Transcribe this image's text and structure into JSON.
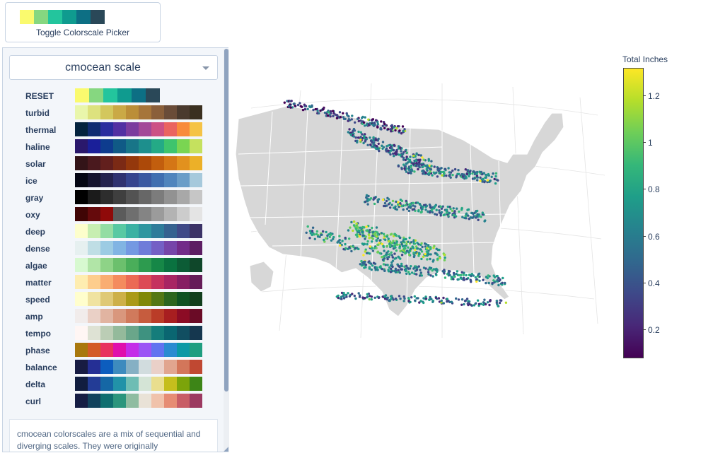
{
  "toggle": {
    "label": "Toggle Colorscale Picker",
    "swatches": [
      "#fafa6e",
      "#86d780",
      "#23c59d",
      "#0f9b8f",
      "#0d6f84",
      "#2a4858"
    ]
  },
  "picker": {
    "selected": "cmocean scale",
    "scales": [
      {
        "name": "RESET",
        "colors": [
          "#fafa6e",
          "#86d780",
          "#23c59d",
          "#0f9b8f",
          "#0d6f84",
          "#2a4858"
        ]
      },
      {
        "name": "turbid",
        "colors": [
          "#e9f6ab",
          "#dde27e",
          "#d3c75d",
          "#caa946",
          "#bb8e38",
          "#a6753a",
          "#8a5f3a",
          "#6a4c38",
          "#4a3a2e",
          "#3a3020"
        ]
      },
      {
        "name": "thermal",
        "colors": [
          "#04233e",
          "#0f2c71",
          "#2a2d9e",
          "#5230a2",
          "#7b3c9e",
          "#a34898",
          "#cc5185",
          "#ea6460",
          "#f88b3c",
          "#f5c346"
        ]
      },
      {
        "name": "haline",
        "colors": [
          "#2a186c",
          "#1a1f99",
          "#0e3c8e",
          "#105a86",
          "#187588",
          "#1d8f8d",
          "#24aa86",
          "#3ec46d",
          "#7ad552",
          "#c5e15e"
        ]
      },
      {
        "name": "solar",
        "colors": [
          "#331418",
          "#4a191e",
          "#621f1d",
          "#7b2a15",
          "#94380c",
          "#ac4909",
          "#c25e0e",
          "#d47616",
          "#e2911e",
          "#ecb028"
        ]
      },
      {
        "name": "ice",
        "colors": [
          "#040613",
          "#15142e",
          "#24234f",
          "#2f3270",
          "#35448e",
          "#3a59a1",
          "#406fb0",
          "#5085bd",
          "#6a9dc8",
          "#a6c9dc"
        ]
      },
      {
        "name": "gray",
        "colors": [
          "#000000",
          "#1b1b1b",
          "#2d2d2d",
          "#3f3f3f",
          "#535353",
          "#676767",
          "#7c7c7c",
          "#929292",
          "#a8a8a8",
          "#c6c6c6"
        ]
      },
      {
        "name": "oxy",
        "colors": [
          "#400505",
          "#650a0c",
          "#8f0a09",
          "#5b5b5b",
          "#6f6f6f",
          "#848484",
          "#9b9b9b",
          "#b3b3b3",
          "#cccccc",
          "#e4e4e4"
        ]
      },
      {
        "name": "deep",
        "colors": [
          "#fdfecc",
          "#c7eeb1",
          "#93dda4",
          "#58c9a3",
          "#3ab1a3",
          "#2f96a0",
          "#2e7c9a",
          "#356290",
          "#3f4a88",
          "#3b3367"
        ]
      },
      {
        "name": "dense",
        "colors": [
          "#e6f0f0",
          "#bfdee5",
          "#9ccbe3",
          "#81b4e3",
          "#7499e2",
          "#6f7cd9",
          "#7460c5",
          "#7645a9",
          "#722c89",
          "#5d1d63"
        ]
      },
      {
        "name": "algae",
        "colors": [
          "#d7f9d0",
          "#b1e5a7",
          "#8ed387",
          "#6cc06d",
          "#4aae5a",
          "#2d9b4f",
          "#168747",
          "#0a7240",
          "#0c5c36",
          "#0f472a"
        ]
      },
      {
        "name": "matter",
        "colors": [
          "#feedb0",
          "#fdcd8d",
          "#f9ad72",
          "#f48b5e",
          "#eb6a55",
          "#dc4b56",
          "#c5325e",
          "#a82563",
          "#871e62",
          "#651c58"
        ]
      },
      {
        "name": "speed",
        "colors": [
          "#fffecd",
          "#f0e3a1",
          "#dfc976",
          "#cdb049",
          "#aa9a19",
          "#7f8808",
          "#537714",
          "#2c651e",
          "#0f5222",
          "#113e1c"
        ]
      },
      {
        "name": "amp",
        "colors": [
          "#f1eceb",
          "#ead0c6",
          "#e1b4a1",
          "#d9977d",
          "#d07a5c",
          "#c65c3e",
          "#ba3c28",
          "#a81e20",
          "#8c0c25",
          "#6a0b26"
        ]
      },
      {
        "name": "tempo",
        "colors": [
          "#fff6f4",
          "#dee2d4",
          "#bbcdb5",
          "#94ba9b",
          "#6aa68a",
          "#3e9280",
          "#157d7b",
          "#0a6671",
          "#114e61",
          "#15374f"
        ]
      },
      {
        "name": "phase",
        "colors": [
          "#a8780d",
          "#d35b26",
          "#e8315f",
          "#e00fac",
          "#c42de8",
          "#9b54f5",
          "#6173f0",
          "#2a8bd1",
          "#0b99a6",
          "#1f9e80"
        ]
      },
      {
        "name": "balance",
        "colors": [
          "#181c43",
          "#252f95",
          "#0c5dbe",
          "#3d8bbe",
          "#85b0c4",
          "#d1dcde",
          "#ead0c8",
          "#e1a58f",
          "#d3765a",
          "#c04832"
        ]
      },
      {
        "name": "delta",
        "colors": [
          "#111d3f",
          "#233c96",
          "#1567a5",
          "#2192a8",
          "#6ebdb4",
          "#d4e4d6",
          "#e9de8e",
          "#c5be1d",
          "#7ca40a",
          "#3d8517"
        ]
      },
      {
        "name": "curl",
        "colors": [
          "#151d44",
          "#11425d",
          "#0f6e70",
          "#2b957d",
          "#8fbca1",
          "#e9e2d7",
          "#f0c2ab",
          "#e68c74",
          "#c85d66",
          "#9c3a61"
        ]
      }
    ],
    "description": "cmocean colorscales are a mix of sequential and diverging scales. They were originally"
  },
  "colorbar": {
    "title": "Total Inches",
    "ticks": [
      "1.2",
      "1",
      "0.8",
      "0.6",
      "0.4",
      "0.2"
    ],
    "tick_values": [
      1.2,
      1.0,
      0.8,
      0.6,
      0.4,
      0.2
    ],
    "range": [
      0.08,
      1.32
    ],
    "colors": [
      "#440154",
      "#482878",
      "#3e4989",
      "#31688e",
      "#26828e",
      "#1f9e89",
      "#35b779",
      "#6ece58",
      "#b5de2b",
      "#fde725"
    ]
  }
}
